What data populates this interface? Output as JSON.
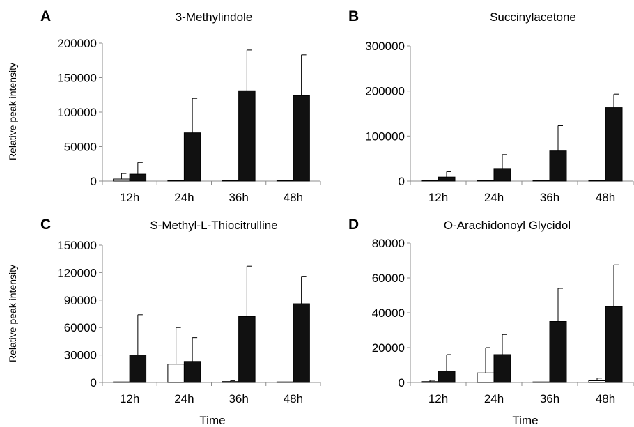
{
  "x_axis_label": "Time",
  "y_axis_label": "Relative peak intensity",
  "colors": {
    "series_a": "#ffffff",
    "series_b": "#111111",
    "stroke": "#000000",
    "axis": "#8c8c8c"
  },
  "chart_data": [
    {
      "panel": "A",
      "type": "bar",
      "title": "3-Methylindole",
      "categories": [
        "12h",
        "24h",
        "36h",
        "48h"
      ],
      "ylim": [
        0,
        200000
      ],
      "yticks": [
        0,
        50000,
        100000,
        150000,
        200000
      ],
      "series": [
        {
          "fill": "white",
          "values": [
            3000,
            0,
            0,
            500
          ],
          "errors": [
            8000,
            0,
            0,
            0
          ]
        },
        {
          "fill": "black",
          "values": [
            10000,
            70000,
            131000,
            124000
          ],
          "errors": [
            17000,
            50000,
            59000,
            59000
          ]
        }
      ]
    },
    {
      "panel": "B",
      "type": "bar",
      "title": "Succinylacetone",
      "categories": [
        "12h",
        "24h",
        "36h",
        "48h"
      ],
      "ylim": [
        0,
        300000
      ],
      "yticks": [
        0,
        100000,
        200000,
        300000
      ],
      "series": [
        {
          "fill": "white",
          "values": [
            0,
            1000,
            0,
            1000
          ],
          "errors": [
            0,
            0,
            0,
            0
          ]
        },
        {
          "fill": "black",
          "values": [
            9000,
            28000,
            67000,
            163000
          ],
          "errors": [
            12000,
            31000,
            56000,
            30000
          ]
        }
      ]
    },
    {
      "panel": "C",
      "type": "bar",
      "title": "S-Methyl-L-Thiocitrulline",
      "categories": [
        "12h",
        "24h",
        "36h",
        "48h"
      ],
      "ylim": [
        0,
        150000
      ],
      "yticks": [
        0,
        30000,
        60000,
        90000,
        120000,
        150000
      ],
      "series": [
        {
          "fill": "white",
          "values": [
            0,
            20000,
            1000,
            500
          ],
          "errors": [
            0,
            40000,
            1000,
            0
          ]
        },
        {
          "fill": "black",
          "values": [
            30000,
            23000,
            72000,
            86000
          ],
          "errors": [
            44000,
            26000,
            55000,
            30000
          ]
        }
      ]
    },
    {
      "panel": "D",
      "type": "bar",
      "title": "O-Arachidonoyl Glycidol",
      "categories": [
        "12h",
        "24h",
        "36h",
        "48h"
      ],
      "ylim": [
        0,
        80000
      ],
      "yticks": [
        0,
        20000,
        40000,
        60000,
        80000
      ],
      "series": [
        {
          "fill": "white",
          "values": [
            500,
            5500,
            0,
            1000
          ],
          "errors": [
            700,
            14500,
            0,
            1500
          ]
        },
        {
          "fill": "black",
          "values": [
            6500,
            16000,
            35000,
            43500
          ],
          "errors": [
            9500,
            11500,
            19000,
            24000
          ]
        }
      ]
    }
  ]
}
